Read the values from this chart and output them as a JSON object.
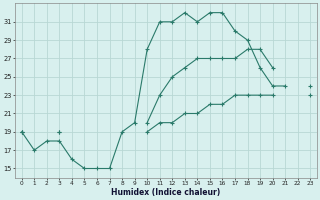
{
  "xlabel": "Humidex (Indice chaleur)",
  "x_values": [
    0,
    1,
    2,
    3,
    4,
    5,
    6,
    7,
    8,
    9,
    10,
    11,
    12,
    13,
    14,
    15,
    16,
    17,
    18,
    19,
    20,
    21,
    22,
    23
  ],
  "line_max": [
    19,
    17,
    18,
    18,
    16,
    15,
    15,
    15,
    19,
    20,
    28,
    31,
    31,
    32,
    31,
    32,
    32,
    30,
    29,
    26,
    24,
    24,
    null,
    null
  ],
  "line_avg": [
    19,
    null,
    null,
    19,
    null,
    null,
    null,
    null,
    null,
    null,
    20,
    23,
    25,
    26,
    27,
    27,
    27,
    27,
    28,
    28,
    26,
    null,
    null,
    24
  ],
  "line_min": [
    19,
    null,
    null,
    19,
    null,
    null,
    null,
    null,
    null,
    null,
    19,
    20,
    20,
    21,
    21,
    22,
    22,
    23,
    23,
    23,
    23,
    null,
    null,
    23
  ],
  "bg_color": "#d8f0ee",
  "grid_color": "#b8d8d4",
  "line_color": "#2a7a6a",
  "ylim": [
    14,
    33
  ],
  "yticks": [
    15,
    17,
    19,
    21,
    23,
    25,
    27,
    29,
    31
  ],
  "xlim": [
    -0.5,
    23.5
  ],
  "xticks": [
    0,
    1,
    2,
    3,
    4,
    5,
    6,
    7,
    8,
    9,
    10,
    11,
    12,
    13,
    14,
    15,
    16,
    17,
    18,
    19,
    20,
    21,
    22,
    23
  ]
}
